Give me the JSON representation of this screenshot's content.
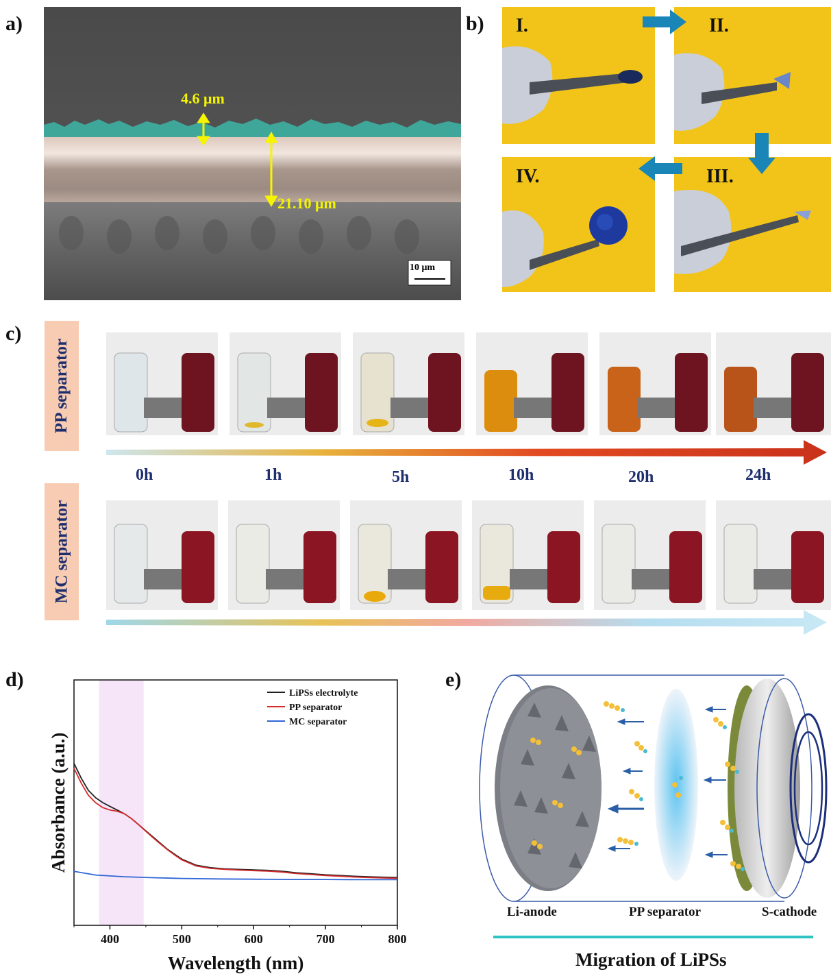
{
  "panels": {
    "a": {
      "label": "a)",
      "thickness_top": "4.6 μm",
      "thickness_mid": "21.10 μm",
      "scale_bar": "10 μm"
    },
    "b": {
      "label": "b)",
      "steps": [
        "I.",
        "II.",
        "III.",
        "IV."
      ]
    },
    "c": {
      "label": "c)",
      "row_labels": [
        "PP separator",
        "MC separator"
      ],
      "times": [
        "0h",
        "1h",
        "5h",
        "10h",
        "20h",
        "24h"
      ]
    },
    "d": {
      "label": "d)"
    },
    "e": {
      "label": "e)",
      "labels": [
        "Li-anode",
        "PP separator",
        "S-cathode"
      ],
      "caption": "Migration of LiPSs"
    }
  },
  "chart_data": {
    "type": "line",
    "xlabel": "Wavelength (nm)",
    "ylabel": "Absorbance (a.u.)",
    "xlim": [
      350,
      800
    ],
    "xticks": [
      400,
      500,
      600,
      700,
      800
    ],
    "ylim": [
      0,
      1
    ],
    "yticks": [],
    "highlight_band": [
      385,
      447
    ],
    "legend_position": "top-right",
    "series": [
      {
        "name": "LiPSs electrolyte",
        "color": "#222222",
        "x": [
          350,
          360,
          370,
          380,
          390,
          400,
          410,
          420,
          430,
          440,
          450,
          460,
          470,
          480,
          490,
          500,
          520,
          540,
          560,
          580,
          600,
          620,
          640,
          660,
          680,
          700,
          720,
          740,
          760,
          780,
          800
        ],
        "y": [
          0.66,
          0.6,
          0.55,
          0.52,
          0.5,
          0.485,
          0.47,
          0.455,
          0.435,
          0.41,
          0.385,
          0.36,
          0.335,
          0.31,
          0.29,
          0.27,
          0.245,
          0.235,
          0.23,
          0.228,
          0.226,
          0.224,
          0.22,
          0.214,
          0.21,
          0.206,
          0.203,
          0.2,
          0.198,
          0.196,
          0.195
        ]
      },
      {
        "name": "PP separator",
        "color": "#d42a2a",
        "x": [
          350,
          360,
          370,
          380,
          390,
          400,
          410,
          420,
          430,
          440,
          450,
          460,
          470,
          480,
          490,
          500,
          520,
          540,
          560,
          580,
          600,
          620,
          640,
          660,
          680,
          700,
          720,
          740,
          760,
          780,
          800
        ],
        "y": [
          0.64,
          0.58,
          0.53,
          0.5,
          0.48,
          0.47,
          0.465,
          0.455,
          0.435,
          0.41,
          0.383,
          0.357,
          0.332,
          0.308,
          0.287,
          0.267,
          0.242,
          0.232,
          0.228,
          0.225,
          0.223,
          0.221,
          0.217,
          0.211,
          0.207,
          0.203,
          0.2,
          0.197,
          0.195,
          0.193,
          0.192
        ]
      },
      {
        "name": "MC separator",
        "color": "#2f66d6",
        "x": [
          350,
          380,
          420,
          460,
          500,
          550,
          600,
          650,
          700,
          750,
          800
        ],
        "y": [
          0.22,
          0.205,
          0.198,
          0.194,
          0.191,
          0.189,
          0.188,
          0.187,
          0.187,
          0.186,
          0.186
        ]
      }
    ]
  }
}
